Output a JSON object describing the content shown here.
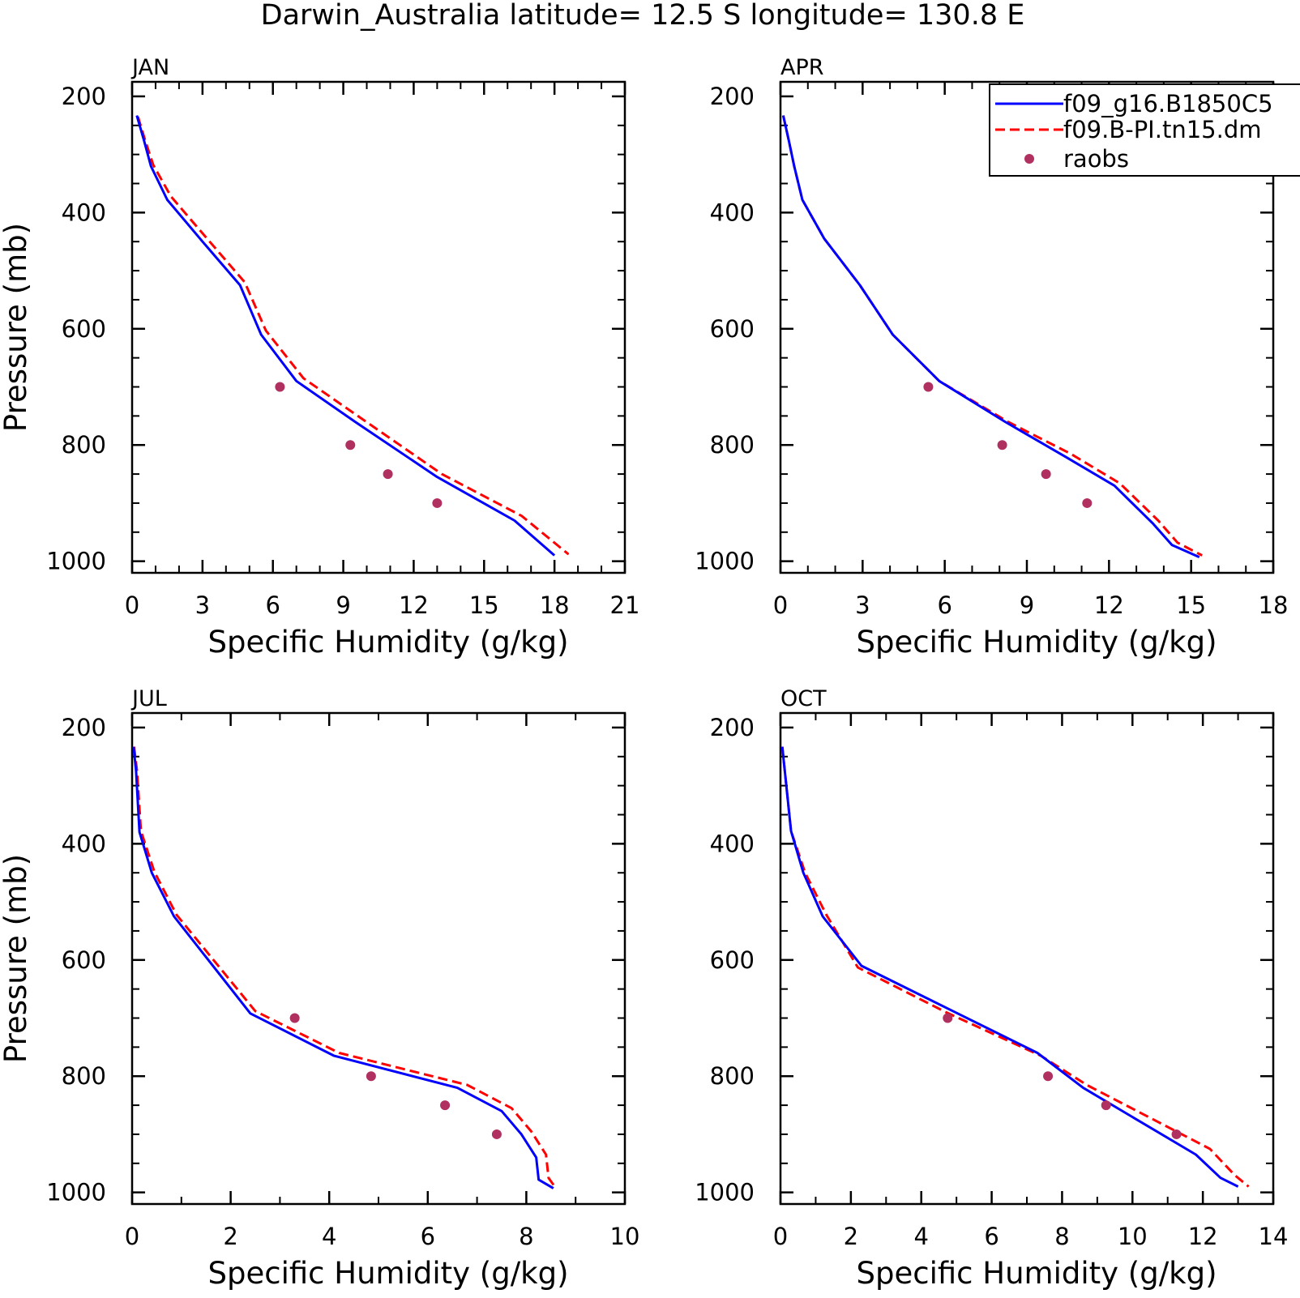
{
  "title": "Darwin_Australia  latitude=  12.5 S longitude=  130.8 E",
  "legend": {
    "entries": [
      {
        "label": "f09_g16.B1850C5",
        "style": "solid",
        "color": "#0000ff"
      },
      {
        "label": "f09.B-PI.tn15.dm",
        "style": "dashed",
        "color": "#ff0000"
      },
      {
        "label": "raobs",
        "style": "dot",
        "color": "#b03060"
      }
    ]
  },
  "chart_data": [
    {
      "type": "line",
      "panel": "JAN",
      "xlabel": "Specific Humidity (g/kg)",
      "ylabel": "Pressure (mb)",
      "xlim": [
        0,
        21
      ],
      "ylim": [
        200,
        1000
      ],
      "y_inverted": true,
      "xticks": [
        "0",
        "3",
        "6",
        "9",
        "12",
        "15",
        "18",
        "21"
      ],
      "xtick_values": [
        0,
        3,
        6,
        9,
        12,
        15,
        18,
        21
      ],
      "yticks": [
        "200",
        "400",
        "600",
        "800",
        "1000"
      ],
      "ytick_values": [
        200,
        400,
        600,
        800,
        1000
      ],
      "series": [
        {
          "name": "f09_g16.B1850C5",
          "points": [
            [
              0.2,
              233
            ],
            [
              0.5,
              275
            ],
            [
              0.8,
              320
            ],
            [
              1.5,
              378
            ],
            [
              3.0,
              450
            ],
            [
              4.6,
              525
            ],
            [
              5.5,
              610
            ],
            [
              7.0,
              690
            ],
            [
              9.5,
              760
            ],
            [
              13.0,
              855
            ],
            [
              16.3,
              930
            ],
            [
              18.0,
              990
            ]
          ]
        },
        {
          "name": "f09.B-PI.tn15.dm",
          "points": [
            [
              0.25,
              235
            ],
            [
              0.55,
              275
            ],
            [
              0.9,
              318
            ],
            [
              1.65,
              372
            ],
            [
              3.2,
              445
            ],
            [
              4.8,
              520
            ],
            [
              5.7,
              603
            ],
            [
              7.3,
              685
            ],
            [
              9.8,
              755
            ],
            [
              13.2,
              850
            ],
            [
              16.6,
              922
            ],
            [
              18.6,
              988
            ]
          ]
        },
        {
          "name": "raobs",
          "points": [
            [
              6.3,
              700
            ],
            [
              9.3,
              800
            ],
            [
              10.9,
              850
            ],
            [
              13.0,
              900
            ]
          ]
        }
      ]
    },
    {
      "type": "line",
      "panel": "APR",
      "xlabel": "Specific Humidity (g/kg)",
      "ylabel": "",
      "xlim": [
        0,
        18
      ],
      "ylim": [
        200,
        1000
      ],
      "y_inverted": true,
      "xticks": [
        "0",
        "3",
        "6",
        "9",
        "12",
        "15",
        "18"
      ],
      "xtick_values": [
        0,
        3,
        6,
        9,
        12,
        15,
        18
      ],
      "yticks": [
        "200",
        "400",
        "600",
        "800",
        "1000"
      ],
      "ytick_values": [
        200,
        400,
        600,
        800,
        1000
      ],
      "series": [
        {
          "name": "f09_g16.B1850C5",
          "points": [
            [
              0.1,
              233
            ],
            [
              0.3,
              275
            ],
            [
              0.5,
              320
            ],
            [
              0.8,
              378
            ],
            [
              1.6,
              445
            ],
            [
              2.9,
              525
            ],
            [
              4.1,
              610
            ],
            [
              5.8,
              690
            ],
            [
              8.2,
              760
            ],
            [
              10.4,
              820
            ],
            [
              12.2,
              870
            ],
            [
              13.6,
              935
            ],
            [
              14.3,
              972
            ],
            [
              15.3,
              993
            ]
          ]
        },
        {
          "name": "f09.B-PI.tn15.dm",
          "points": [
            [
              0.1,
              233
            ],
            [
              0.3,
              275
            ],
            [
              0.5,
              320
            ],
            [
              0.8,
              378
            ],
            [
              1.6,
              445
            ],
            [
              2.9,
              525
            ],
            [
              4.1,
              610
            ],
            [
              5.8,
              690
            ],
            [
              8.3,
              760
            ],
            [
              10.6,
              815
            ],
            [
              12.4,
              866
            ],
            [
              13.8,
              930
            ],
            [
              14.5,
              968
            ],
            [
              15.4,
              990
            ]
          ]
        },
        {
          "name": "raobs",
          "points": [
            [
              5.4,
              700
            ],
            [
              8.1,
              800
            ],
            [
              9.7,
              850
            ],
            [
              11.2,
              900
            ]
          ]
        }
      ]
    },
    {
      "type": "line",
      "panel": "JUL",
      "xlabel": "Specific Humidity (g/kg)",
      "ylabel": "Pressure (mb)",
      "xlim": [
        0,
        10
      ],
      "ylim": [
        200,
        1000
      ],
      "y_inverted": true,
      "xticks": [
        "0",
        "2",
        "4",
        "6",
        "8",
        "10"
      ],
      "xtick_values": [
        0,
        2,
        4,
        6,
        8,
        10
      ],
      "yticks": [
        "200",
        "400",
        "600",
        "800",
        "1000"
      ],
      "ytick_values": [
        200,
        400,
        600,
        800,
        1000
      ],
      "series": [
        {
          "name": "f09_g16.B1850C5",
          "points": [
            [
              0.03,
              233
            ],
            [
              0.08,
              275
            ],
            [
              0.15,
              380
            ],
            [
              0.4,
              450
            ],
            [
              0.85,
              525
            ],
            [
              2.4,
              692
            ],
            [
              4.1,
              765
            ],
            [
              6.6,
              820
            ],
            [
              7.5,
              860
            ],
            [
              7.9,
              900
            ],
            [
              8.2,
              940
            ],
            [
              8.25,
              978
            ],
            [
              8.55,
              993
            ]
          ]
        },
        {
          "name": "f09.B-PI.tn15.dm",
          "points": [
            [
              0.04,
              233
            ],
            [
              0.1,
              275
            ],
            [
              0.18,
              378
            ],
            [
              0.45,
              448
            ],
            [
              0.9,
              522
            ],
            [
              2.5,
              688
            ],
            [
              4.2,
              760
            ],
            [
              6.8,
              815
            ],
            [
              7.7,
              855
            ],
            [
              8.1,
              895
            ],
            [
              8.4,
              935
            ],
            [
              8.45,
              975
            ],
            [
              8.6,
              993
            ]
          ]
        },
        {
          "name": "raobs",
          "points": [
            [
              3.3,
              700
            ],
            [
              4.85,
              800
            ],
            [
              6.35,
              850
            ],
            [
              7.4,
              900
            ]
          ]
        }
      ]
    },
    {
      "type": "line",
      "panel": "OCT",
      "xlabel": "Specific Humidity (g/kg)",
      "ylabel": "",
      "xlim": [
        0,
        14
      ],
      "ylim": [
        200,
        1000
      ],
      "y_inverted": true,
      "xticks": [
        "0",
        "2",
        "4",
        "6",
        "8",
        "10",
        "12",
        "14"
      ],
      "xtick_values": [
        0,
        2,
        4,
        6,
        8,
        10,
        12,
        14
      ],
      "yticks": [
        "200",
        "400",
        "600",
        "800",
        "1000"
      ],
      "ytick_values": [
        200,
        400,
        600,
        800,
        1000
      ],
      "series": [
        {
          "name": "f09_g16.B1850C5",
          "points": [
            [
              0.05,
              233
            ],
            [
              0.2,
              320
            ],
            [
              0.3,
              378
            ],
            [
              0.65,
              450
            ],
            [
              1.2,
              525
            ],
            [
              2.3,
              610
            ],
            [
              4.8,
              685
            ],
            [
              7.3,
              760
            ],
            [
              8.6,
              820
            ],
            [
              11.8,
              935
            ],
            [
              12.5,
              975
            ],
            [
              13.0,
              990
            ]
          ]
        },
        {
          "name": "f09.B-PI.tn15.dm",
          "points": [
            [
              0.05,
              233
            ],
            [
              0.2,
              320
            ],
            [
              0.3,
              378
            ],
            [
              0.7,
              450
            ],
            [
              1.3,
              522
            ],
            [
              2.2,
              613
            ],
            [
              4.7,
              690
            ],
            [
              7.4,
              765
            ],
            [
              8.7,
              815
            ],
            [
              12.2,
              925
            ],
            [
              12.9,
              970
            ],
            [
              13.3,
              990
            ]
          ]
        },
        {
          "name": "raobs",
          "points": [
            [
              4.75,
              700
            ],
            [
              7.6,
              800
            ],
            [
              9.25,
              850
            ],
            [
              11.25,
              900
            ]
          ]
        }
      ]
    }
  ]
}
